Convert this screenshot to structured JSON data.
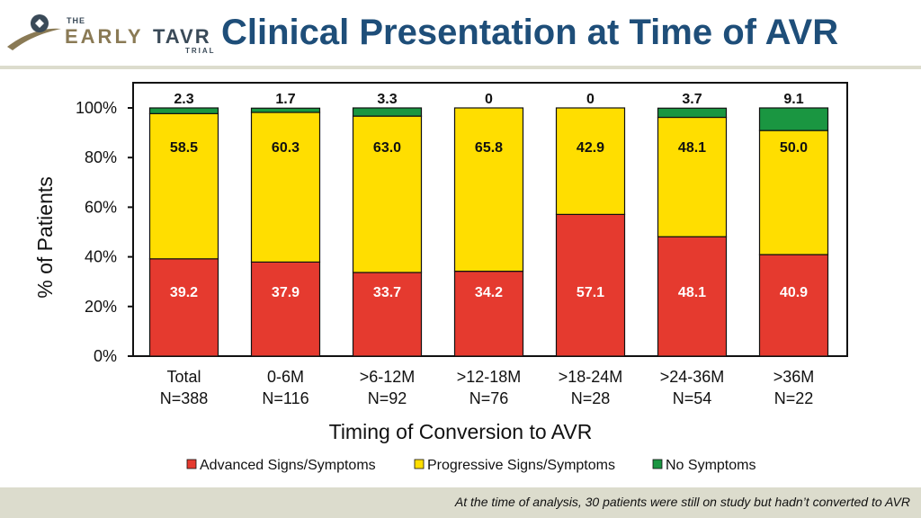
{
  "header": {
    "logo": {
      "the": "THE",
      "early": "EARLY",
      "tavr": "TAVR",
      "trial": "TRIAL"
    },
    "title": "Clinical Presentation at Time of AVR"
  },
  "footer": {
    "note": "At the time of analysis, 30 patients were still on study but hadn’t converted to AVR"
  },
  "colors": {
    "advanced": "#e53a2f",
    "progressive": "#ffde00",
    "none": "#1a9641",
    "title": "#1e4e79",
    "rule": "#dcdccd"
  },
  "chart_data": {
    "type": "bar",
    "stacked": true,
    "title": "Clinical Presentation at Time of AVR",
    "xlabel": "Timing of Conversion to AVR",
    "ylabel": "% of Patients",
    "ylim": [
      0,
      100
    ],
    "yticks": [
      "0%",
      "20%",
      "40%",
      "60%",
      "80%",
      "100%"
    ],
    "categories": [
      {
        "name": "Total",
        "n": "N=388"
      },
      {
        "name": "0-6M",
        "n": "N=116"
      },
      {
        "name": ">6-12M",
        "n": "N=92"
      },
      {
        "name": ">12-18M",
        "n": "N=76"
      },
      {
        "name": ">18-24M",
        "n": "N=28"
      },
      {
        "name": ">24-36M",
        "n": "N=54"
      },
      {
        "name": ">36M",
        "n": "N=22"
      }
    ],
    "series": [
      {
        "name": "Advanced Signs/Symptoms",
        "values": [
          39.2,
          37.9,
          33.7,
          34.2,
          57.1,
          48.1,
          40.9
        ],
        "labels": [
          "39.2",
          "37.9",
          "33.7",
          "34.2",
          "57.1",
          "48.1",
          "40.9"
        ]
      },
      {
        "name": "Progressive Signs/Symptoms",
        "values": [
          58.5,
          60.3,
          63.0,
          65.8,
          42.9,
          48.1,
          50.0
        ],
        "labels": [
          "58.5",
          "60.3",
          "63.0",
          "65.8",
          "42.9",
          "48.1",
          "50.0"
        ]
      },
      {
        "name": "No Symptoms",
        "values": [
          2.3,
          1.7,
          3.3,
          0,
          0,
          3.7,
          9.1
        ],
        "labels": [
          "2.3",
          "1.7",
          "3.3",
          "0",
          "0",
          "3.7",
          "9.1"
        ]
      }
    ],
    "legend_position": "bottom"
  }
}
